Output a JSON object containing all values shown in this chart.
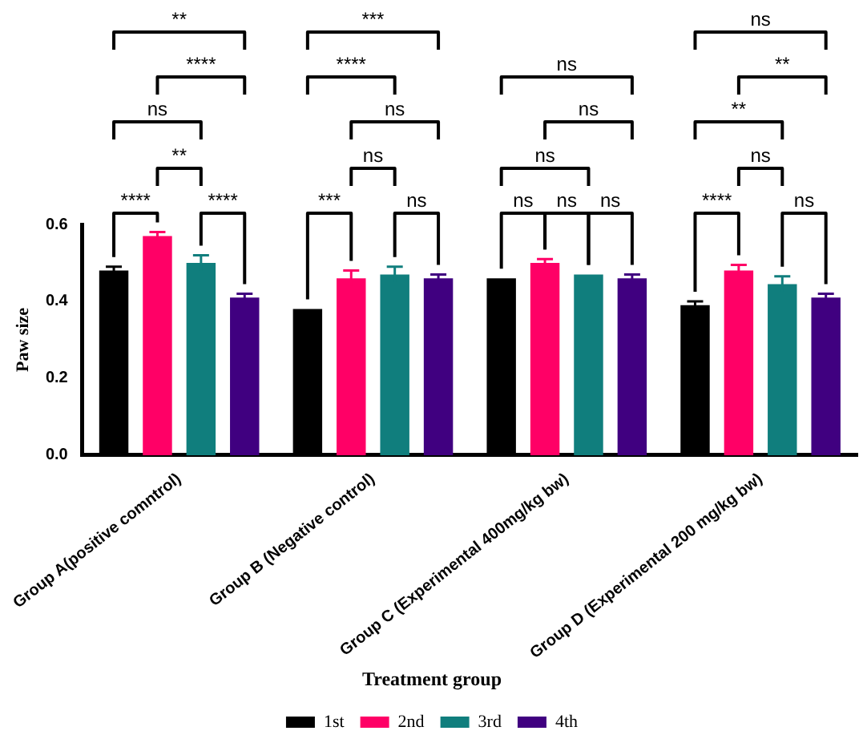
{
  "chart_data": {
    "type": "bar",
    "ylabel": "Paw size",
    "legend_title": "Treatment group",
    "categories": [
      "Group A(positive comntrol)",
      "Group B (Negative control)",
      "Group C (Experimental 400mg/kg bw)",
      "Group D (Experimental 200 mg/kg bw)"
    ],
    "series": [
      {
        "name": "1st",
        "color": "#000000",
        "values": [
          0.48,
          0.38,
          0.46,
          0.39
        ],
        "errors": [
          0.01,
          null,
          null,
          0.01
        ]
      },
      {
        "name": "2nd",
        "color": "#ff0066",
        "values": [
          0.57,
          0.46,
          0.5,
          0.48
        ],
        "errors": [
          0.01,
          0.02,
          0.01,
          0.015
        ]
      },
      {
        "name": "3rd",
        "color": "#107e7d",
        "values": [
          0.5,
          0.47,
          0.47,
          0.445
        ],
        "errors": [
          0.02,
          0.02,
          null,
          0.02
        ]
      },
      {
        "name": "4th",
        "color": "#400080",
        "values": [
          0.41,
          0.46,
          0.46,
          0.41
        ],
        "errors": [
          0.01,
          0.01,
          0.01,
          0.01
        ]
      }
    ],
    "ylim": [
      0,
      0.6
    ],
    "yticks": [
      {
        "value": 0,
        "label": "0.0"
      },
      {
        "value": 0.2,
        "label": "0.2"
      },
      {
        "value": 0.4,
        "label": "0.4"
      },
      {
        "value": 0.6,
        "label": "0.6"
      }
    ],
    "grid": false,
    "legend": "bottom",
    "annotations": [
      "****",
      "****",
      "**",
      "ns",
      "****",
      "**",
      "***",
      "ns",
      "ns",
      "ns",
      "****",
      "***",
      "ns",
      "ns",
      "ns",
      "ns",
      "ns",
      "ns",
      "****",
      "ns",
      "ns",
      "**",
      "**",
      "ns"
    ]
  }
}
